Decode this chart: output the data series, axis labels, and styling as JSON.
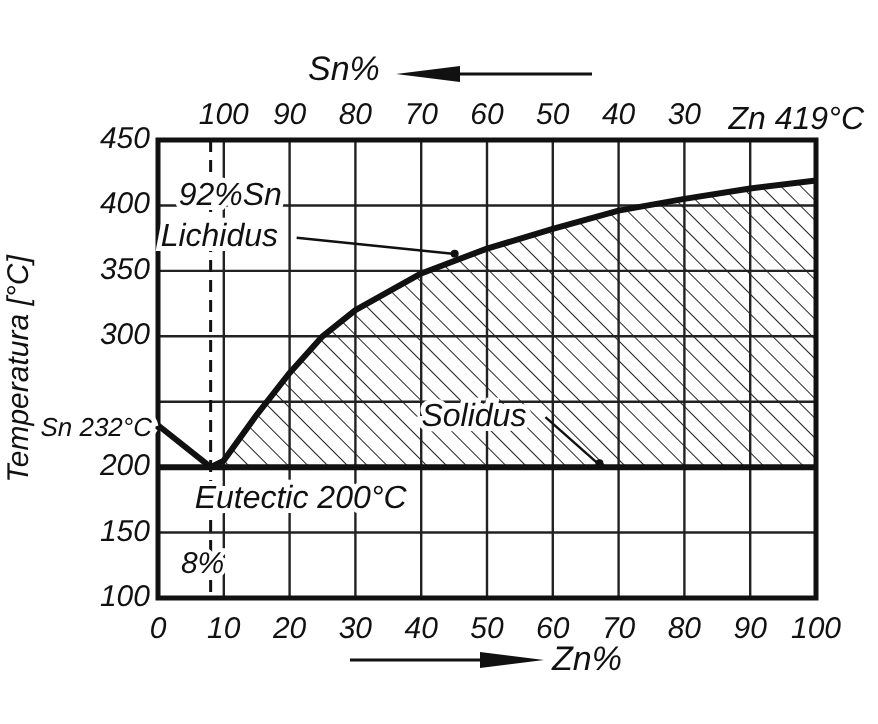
{
  "chart_data": {
    "type": "line",
    "xlabel": "Zn%",
    "x2label": "Sn%",
    "ylabel": "Temperatura [°C]",
    "xlim": [
      0,
      100
    ],
    "xticks": [
      0,
      10,
      20,
      30,
      40,
      50,
      60,
      70,
      80,
      90,
      100
    ],
    "x2lim": [
      110,
      10
    ],
    "x2ticks": [
      100,
      90,
      80,
      70,
      60,
      50,
      40,
      30
    ],
    "ylim": [
      100,
      450
    ],
    "yticks": [
      100,
      150,
      200,
      {
        "value": 250,
        "label": null
      },
      300,
      350,
      400,
      450
    ],
    "grid": true,
    "line_style": "solid",
    "marker": "none",
    "series": [
      {
        "color": "#111111",
        "x": [
          0,
          8
        ],
        "values": [
          232,
          200
        ]
      },
      {
        "type": "area",
        "color": "#111111",
        "x": [
          8,
          10,
          15,
          20,
          25,
          30,
          40,
          50,
          60,
          70,
          80,
          90,
          100
        ],
        "values": [
          200,
          205,
          240,
          272,
          300,
          320,
          348,
          367,
          382,
          396,
          405,
          413,
          419
        ]
      }
    ],
    "ref_lines": [
      {
        "axis": "x",
        "value": 8,
        "label": "8%",
        "line_style": "dashed",
        "color": "#111111"
      },
      {
        "axis": "y",
        "value": 200,
        "line_style": "solid",
        "color": "#111111"
      }
    ],
    "annotations": [
      {
        "text": "Lichidus",
        "x": 46,
        "y": 360
      },
      {
        "text": "Solidus",
        "x": 68,
        "y": 200
      },
      {
        "text": "Zn 419°C",
        "x": 100,
        "y": 419
      },
      {
        "text": "Sn 232°C",
        "x": 0,
        "y": 232
      },
      {
        "text": "Eutectic 200°C",
        "x": 8,
        "y": 200
      },
      {
        "text": "92%Sn",
        "x": 8,
        "y": 430
      }
    ]
  }
}
